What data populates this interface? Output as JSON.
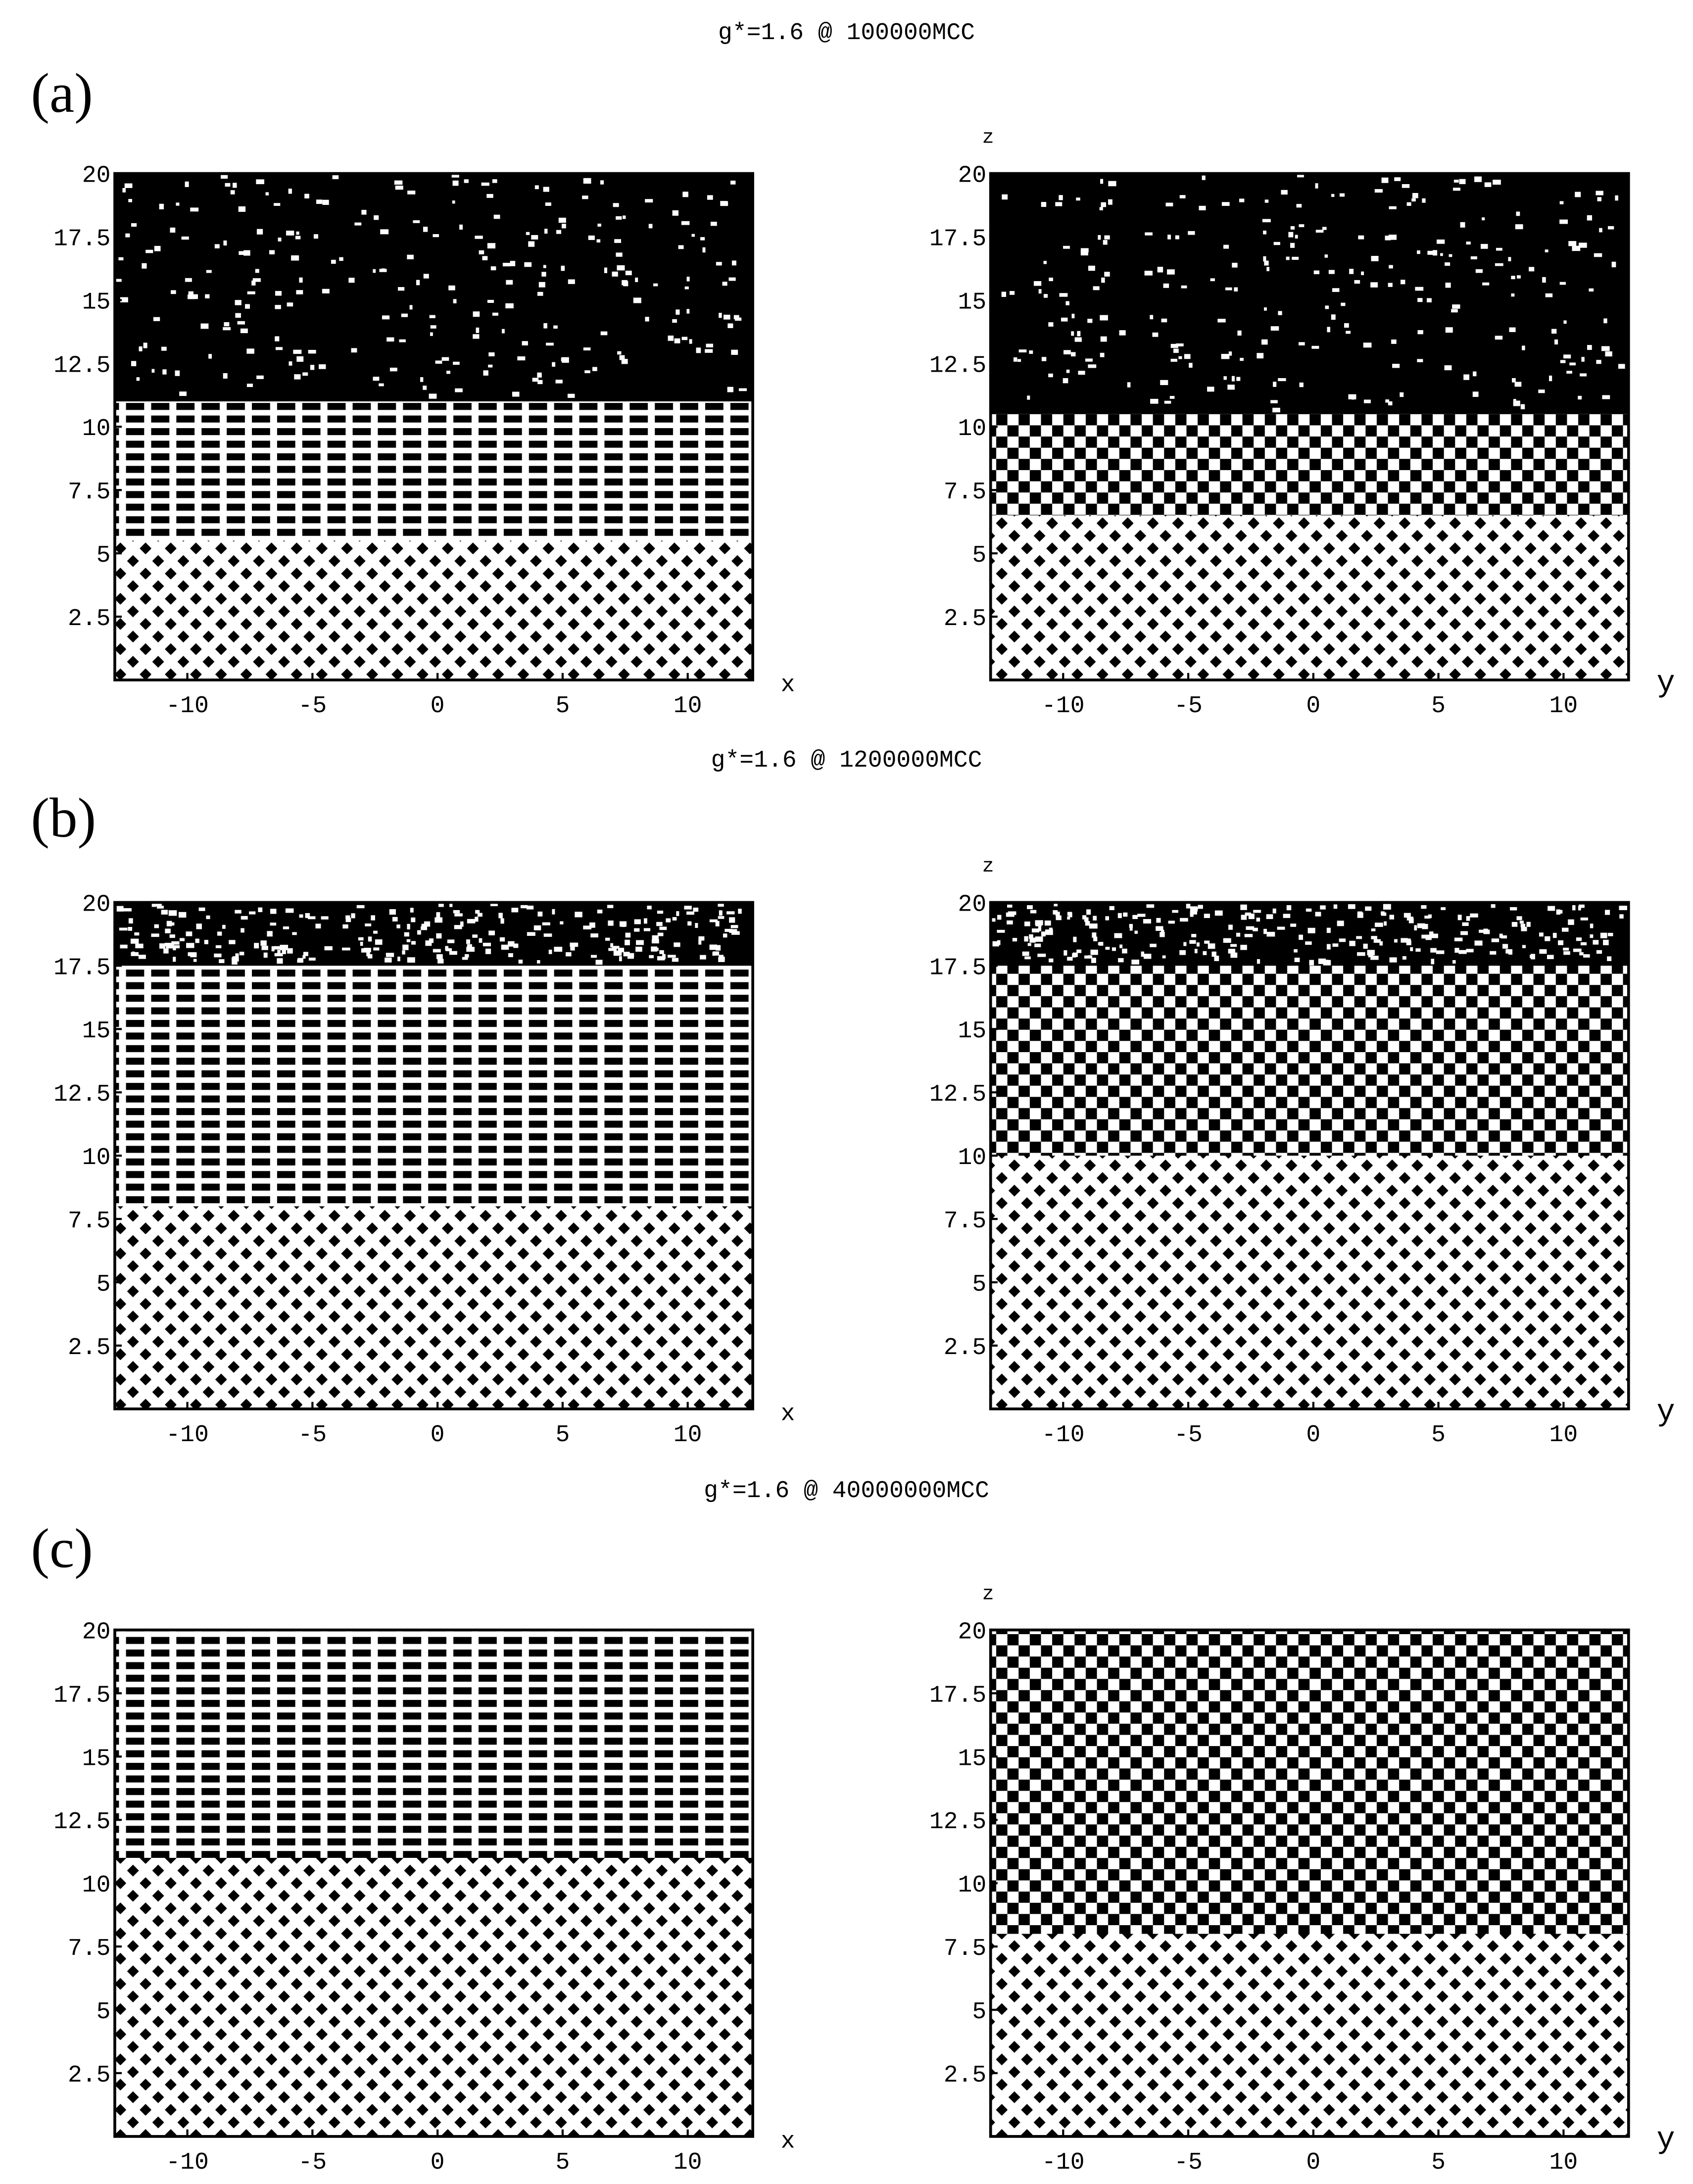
{
  "rows": [
    {
      "label": "(a)",
      "title": "g*=1.6 @ 100000MCC"
    },
    {
      "label": "(b)",
      "title": "g*=1.6 @ 1200000MCC"
    },
    {
      "label": "(c)",
      "title": "g*=1.6 @ 40000000MCC"
    }
  ],
  "axes": {
    "xlim": [
      -12.9,
      12.6
    ],
    "zlim": [
      0,
      20
    ],
    "xticks": [
      -10,
      -5,
      0,
      5,
      10
    ],
    "zticks": [
      2.5,
      5,
      7.5,
      10,
      12.5,
      15,
      17.5,
      20
    ],
    "left_xlabel": "x",
    "right_xlabel": "y",
    "zlabel": "z"
  }
}
